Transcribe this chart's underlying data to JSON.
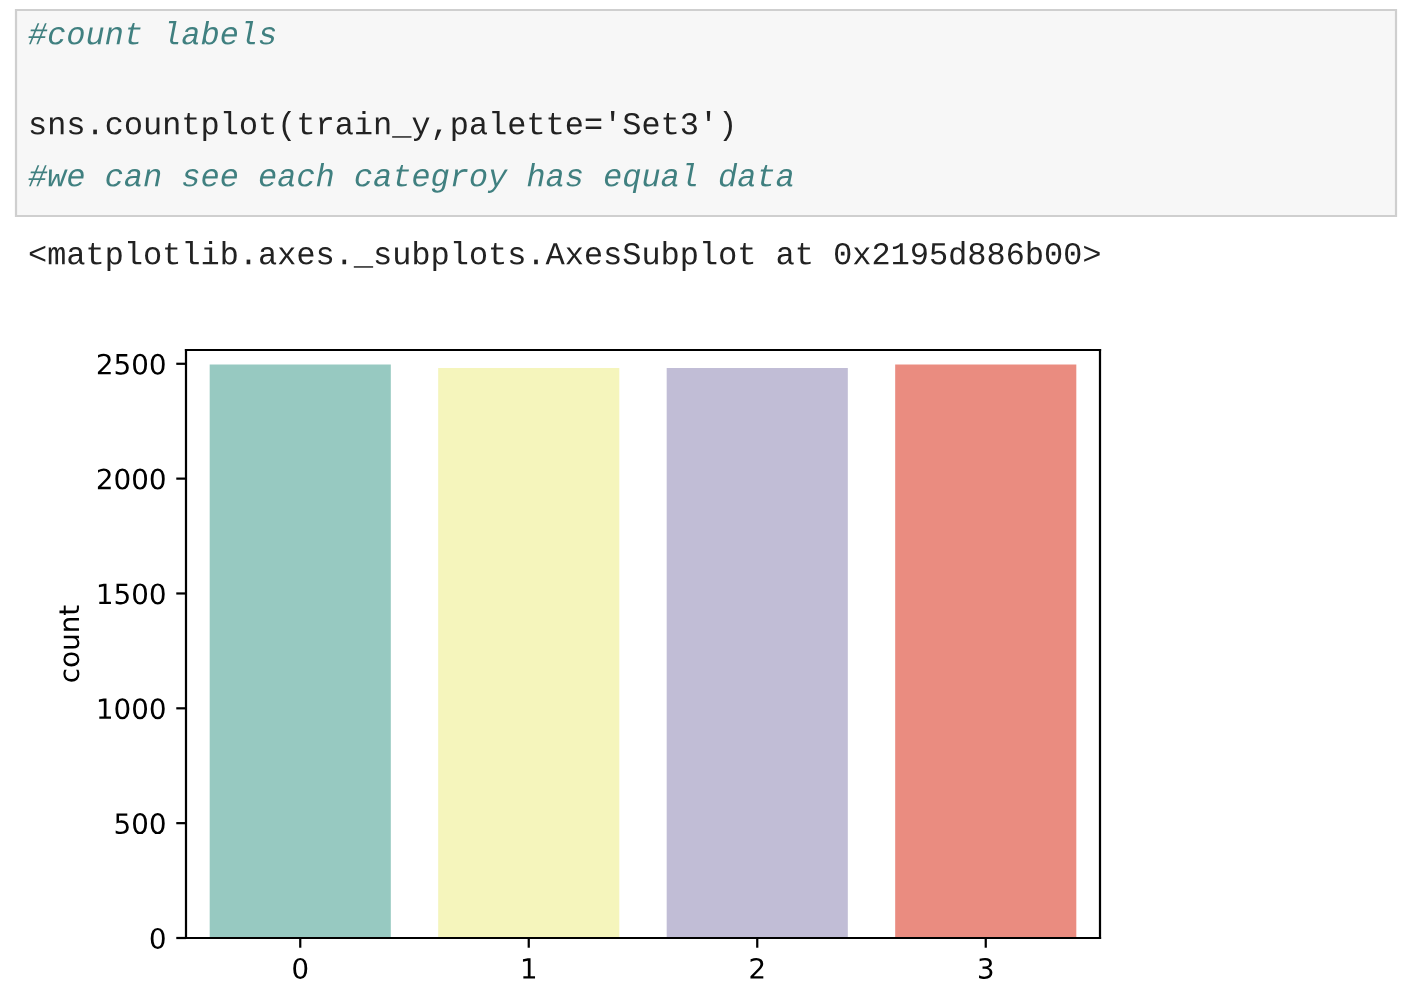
{
  "chart_data": {
    "type": "bar",
    "categories": [
      "0",
      "1",
      "2",
      "3"
    ],
    "values": [
      2500,
      2485,
      2485,
      2500
    ],
    "colors": [
      "#97c9c1",
      "#f5f5bc",
      "#c1bdd6",
      "#ea8c80"
    ],
    "ylabel": "count",
    "ylim": [
      0,
      2560
    ],
    "yticks": [
      0,
      500,
      1000,
      1500,
      2000,
      2500
    ],
    "grid": false,
    "legend": false,
    "annotations": [
      "#count labels",
      "sns.countplot(train_y,palette='Set3')",
      "#we can see each categroy has equal data",
      "<matplotlib.axes._subplots.AxesSubplot at 0x2195d886b00>"
    ]
  }
}
